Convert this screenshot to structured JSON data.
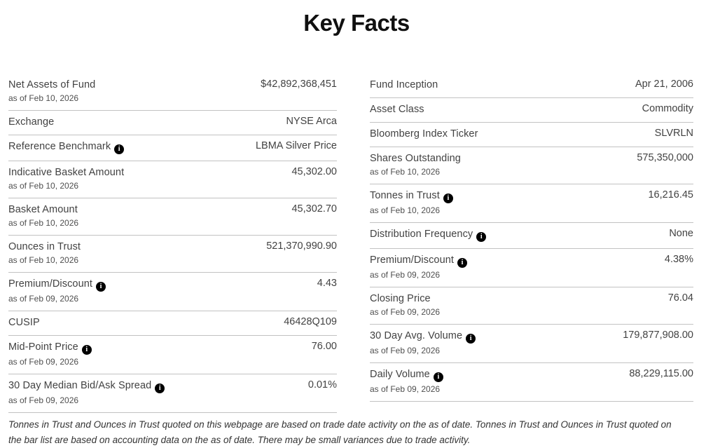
{
  "title": "Key Facts",
  "columns": [
    {
      "name": "left",
      "rows": [
        {
          "label": "Net Assets of Fund",
          "as_of": "as of Feb 10, 2026",
          "value": "$42,892,368,451",
          "info": false
        },
        {
          "label": "Exchange",
          "value": "NYSE Arca",
          "info": false
        },
        {
          "label": "Reference Benchmark",
          "value": "LBMA Silver Price",
          "info": true
        },
        {
          "label": "Indicative Basket Amount",
          "as_of": "as of Feb 10, 2026",
          "value": "45,302.00",
          "info": false
        },
        {
          "label": "Basket Amount",
          "as_of": "as of Feb 10, 2026",
          "value": "45,302.70",
          "info": false
        },
        {
          "label": "Ounces in Trust",
          "as_of": "as of Feb 10, 2026",
          "value": "521,370,990.90",
          "info": false
        },
        {
          "label": "Premium/Discount",
          "as_of": "as of Feb 09, 2026",
          "value": "4.43",
          "info": true
        },
        {
          "label": "CUSIP",
          "value": "46428Q109",
          "info": false
        },
        {
          "label": "Mid-Point Price",
          "as_of": "as of Feb 09, 2026",
          "value": "76.00",
          "info": true
        },
        {
          "label": "30 Day Median Bid/Ask Spread",
          "as_of": "as of Feb 09, 2026",
          "value": "0.01%",
          "info": true
        }
      ]
    },
    {
      "name": "right",
      "rows": [
        {
          "label": "Fund Inception",
          "value": "Apr 21, 2006",
          "info": false
        },
        {
          "label": "Asset Class",
          "value": "Commodity",
          "info": false
        },
        {
          "label": "Bloomberg Index Ticker",
          "value": "SLVRLN",
          "info": false
        },
        {
          "label": "Shares Outstanding",
          "as_of": "as of Feb 10, 2026",
          "value": "575,350,000",
          "info": false
        },
        {
          "label": "Tonnes in Trust",
          "as_of": "as of Feb 10, 2026",
          "value": "16,216.45",
          "info": true
        },
        {
          "label": "Distribution Frequency",
          "value": "None",
          "info": true
        },
        {
          "label": "Premium/Discount",
          "as_of": "as of Feb 09, 2026",
          "value": "4.38%",
          "info": true
        },
        {
          "label": "Closing Price",
          "as_of": "as of Feb 09, 2026",
          "value": "76.04",
          "info": false
        },
        {
          "label": "30 Day Avg. Volume",
          "as_of": "as of Feb 09, 2026",
          "value": "179,877,908.00",
          "info": true
        },
        {
          "label": "Daily Volume",
          "as_of": "as of Feb 09, 2026",
          "value": "88,229,115.00",
          "info": true
        }
      ]
    }
  ],
  "info_icon_glyph": "i",
  "footnote": "Tonnes in Trust and Ounces in Trust quoted on this webpage are based on trade date activity on the as of date. Tonnes in Trust and Ounces in Trust quoted on the bar list are based on accounting data on the as of date. There may be small variances due to trade activity.",
  "colors": {
    "text": "#424242",
    "divider": "#c2c2c2",
    "info_icon_bg": "#000000",
    "info_icon_fg": "#ffffff"
  }
}
